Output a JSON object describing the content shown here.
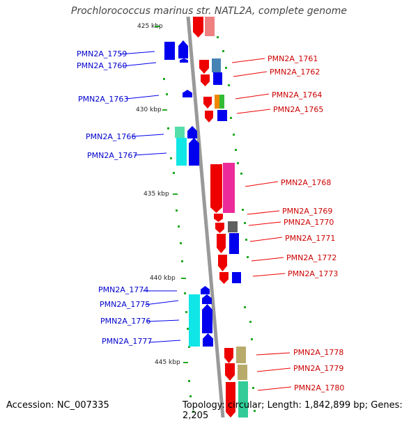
{
  "title": "Prochlorococcus marinus str. NATL2A, complete genome",
  "footer": {
    "accession": "Accession: NC_007335",
    "topology": "Topology: circular; Length: 1,842,899 bp; Genes: 2,205"
  },
  "scale_ticks": [
    "425 kbp",
    "430 kbp",
    "435 kbp",
    "440 kbp",
    "445 kbp"
  ],
  "colors": {
    "red": "#ee0000",
    "blue": "#0000ee",
    "cyan": "#11e6e6",
    "pink": "#ec2a9a",
    "salmon": "#ee8080",
    "steel": "#4682b4",
    "gray": "#606060",
    "khaki": "#b8aa6a",
    "orange": "#ee8800",
    "green": "#33bb33",
    "mint": "#33cc99",
    "seafoam": "#55ddaa",
    "axis": "#999999",
    "tick": "#22aa22"
  },
  "left_genes": [
    {
      "label": "PMN2A_1759"
    },
    {
      "label": "PMN2A_1760"
    },
    {
      "label": "PMN2A_1763"
    },
    {
      "label": "PMN2A_1766"
    },
    {
      "label": "PMN2A_1767"
    },
    {
      "label": "PMN2A_1774"
    },
    {
      "label": "PMN2A_1775"
    },
    {
      "label": "PMN2A_1776"
    },
    {
      "label": "PMN2A_1777"
    }
  ],
  "right_genes": [
    {
      "label": "PMN2A_1761"
    },
    {
      "label": "PMN2A_1762"
    },
    {
      "label": "PMN2A_1764"
    },
    {
      "label": "PMN2A_1765"
    },
    {
      "label": "PMN2A_1768"
    },
    {
      "label": "PMN2A_1769"
    },
    {
      "label": "PMN2A_1770"
    },
    {
      "label": "PMN2A_1771"
    },
    {
      "label": "PMN2A_1772"
    },
    {
      "label": "PMN2A_1773"
    },
    {
      "label": "PMN2A_1778"
    },
    {
      "label": "PMN2A_1779"
    },
    {
      "label": "PMN2A_1780"
    }
  ]
}
